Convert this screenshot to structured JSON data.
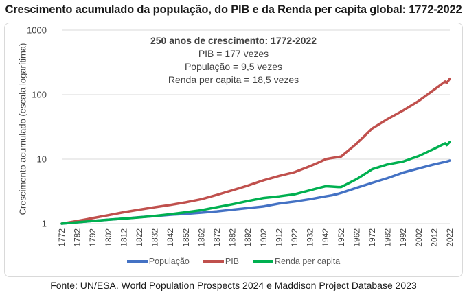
{
  "chart_data": {
    "type": "line",
    "title": "Crescimento acumulado da população, do PIB e da Renda per capita global: 1772-2022",
    "xlabel": "",
    "ylabel": "Crescimento acumulado  (escala logarítima)",
    "yscale": "log",
    "ylim": [
      1,
      1000
    ],
    "xlim": [
      1772,
      2022
    ],
    "grid": true,
    "legend_position": "bottom",
    "y_ticks": [
      {
        "value": 1,
        "label": "1"
      },
      {
        "value": 10,
        "label": "10"
      },
      {
        "value": 100,
        "label": "100"
      },
      {
        "value": 1000,
        "label": "1000"
      }
    ],
    "x_ticks": [
      "1772",
      "1782",
      "1792",
      "1802",
      "1812",
      "1822",
      "1832",
      "1842",
      "1852",
      "1862",
      "1872",
      "1882",
      "1892",
      "1902",
      "1912",
      "1922",
      "1932",
      "1942",
      "1952",
      "1962",
      "1972",
      "1982",
      "1992",
      "2002",
      "2012",
      "2022"
    ],
    "x": [
      1772,
      1782,
      1792,
      1802,
      1812,
      1822,
      1832,
      1842,
      1852,
      1862,
      1872,
      1882,
      1892,
      1902,
      1912,
      1922,
      1932,
      1938,
      1942,
      1946,
      1950,
      1952,
      1962,
      1972,
      1982,
      1992,
      2002,
      2012,
      2019,
      2020,
      2022
    ],
    "series": [
      {
        "name": "População",
        "color": "#4472c4",
        "values": [
          1.0,
          1.05,
          1.1,
          1.15,
          1.2,
          1.26,
          1.31,
          1.37,
          1.42,
          1.48,
          1.55,
          1.65,
          1.75,
          1.85,
          2.05,
          2.2,
          2.4,
          2.55,
          2.65,
          2.75,
          2.9,
          3.0,
          3.6,
          4.3,
          5.1,
          6.2,
          7.2,
          8.3,
          9.1,
          9.2,
          9.5
        ]
      },
      {
        "name": "PIB",
        "color": "#c0504d",
        "values": [
          1.0,
          1.1,
          1.22,
          1.35,
          1.5,
          1.65,
          1.8,
          1.95,
          2.15,
          2.4,
          2.8,
          3.3,
          3.9,
          4.7,
          5.5,
          6.3,
          7.8,
          9.0,
          10.0,
          10.4,
          10.8,
          11.0,
          17.5,
          30,
          42,
          57,
          80,
          120,
          160,
          152,
          177
        ]
      },
      {
        "name": "Renda per capita",
        "color": "#00b050",
        "values": [
          1.0,
          1.05,
          1.1,
          1.15,
          1.2,
          1.25,
          1.32,
          1.4,
          1.5,
          1.62,
          1.8,
          2.0,
          2.25,
          2.5,
          2.65,
          2.85,
          3.3,
          3.6,
          3.8,
          3.75,
          3.7,
          3.7,
          4.9,
          7.0,
          8.3,
          9.2,
          11.2,
          14.5,
          17.6,
          16.5,
          18.5
        ]
      }
    ]
  },
  "annotation": {
    "heading": "250 anos de crescimento: 1772-2022",
    "lines": [
      "PIB = 177 vezes",
      "População = 9,5 vezes",
      "Renda per capita = 18,5 vezes"
    ]
  },
  "source": "Fonte: UN/ESA. World Population Prospects 2024 e Maddison Project Database 2023"
}
